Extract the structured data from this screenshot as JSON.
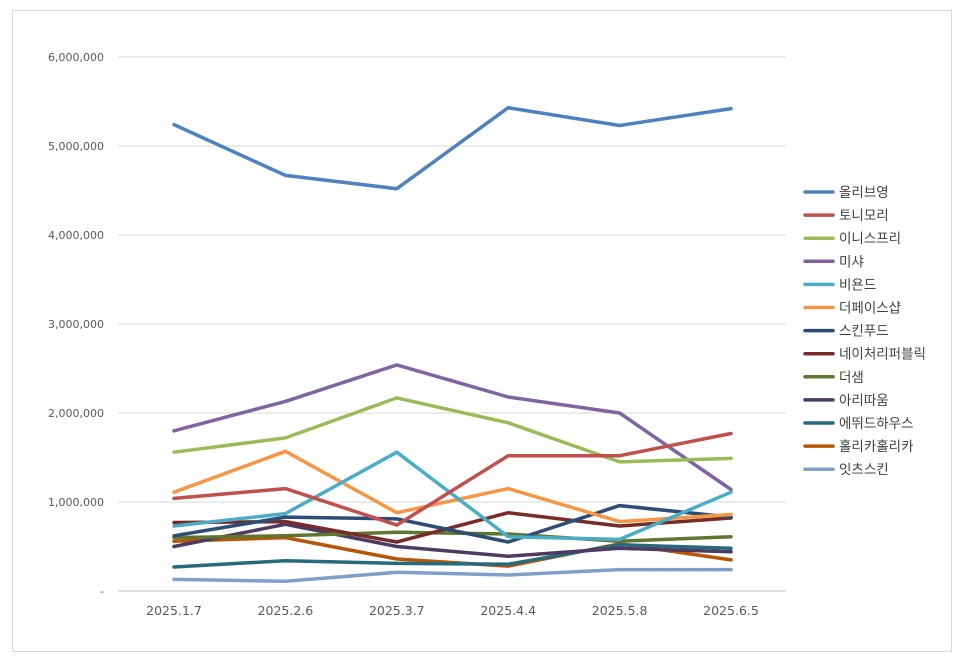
{
  "chart_data": {
    "type": "line",
    "title": "",
    "xlabel": "",
    "ylabel": "",
    "ylim": [
      0,
      6000000
    ],
    "y_ticks": [
      0,
      1000000,
      2000000,
      3000000,
      4000000,
      5000000,
      6000000
    ],
    "y_tick_labels": [
      "-",
      "1,000,000",
      "2,000,000",
      "3,000,000",
      "4,000,000",
      "5,000,000",
      "6,000,000"
    ],
    "categories": [
      "2025.1.7",
      "2025.2.6",
      "2025.3.7",
      "2025.4.4",
      "2025.5.8",
      "2025.6.5"
    ],
    "grid": true,
    "legend_position": "right",
    "series": [
      {
        "name": "올리브영",
        "color": "#4f81bd",
        "values": [
          5240000,
          4670000,
          4520000,
          5430000,
          5230000,
          5420000
        ]
      },
      {
        "name": "토니모리",
        "color": "#c0504d",
        "values": [
          1040000,
          1150000,
          740000,
          1520000,
          1520000,
          1770000
        ]
      },
      {
        "name": "이니스프리",
        "color": "#9bbb59",
        "values": [
          1560000,
          1720000,
          2170000,
          1890000,
          1450000,
          1490000
        ]
      },
      {
        "name": "미샤",
        "color": "#8064a2",
        "values": [
          1800000,
          2130000,
          2540000,
          2180000,
          2000000,
          1140000
        ]
      },
      {
        "name": "비욘드",
        "color": "#4bacc6",
        "values": [
          730000,
          870000,
          1560000,
          610000,
          580000,
          1110000
        ]
      },
      {
        "name": "더페이스샵",
        "color": "#f79646",
        "values": [
          1110000,
          1570000,
          880000,
          1150000,
          780000,
          860000
        ]
      },
      {
        "name": "스킨푸드",
        "color": "#2c4d75",
        "values": [
          620000,
          830000,
          810000,
          550000,
          960000,
          830000
        ]
      },
      {
        "name": "네이처리퍼블릭",
        "color": "#772c2a",
        "values": [
          770000,
          780000,
          550000,
          880000,
          730000,
          820000
        ]
      },
      {
        "name": "더샘",
        "color": "#5f7530",
        "values": [
          600000,
          620000,
          660000,
          640000,
          560000,
          610000
        ]
      },
      {
        "name": "아리따움",
        "color": "#4d3b62",
        "values": [
          500000,
          750000,
          500000,
          390000,
          480000,
          440000
        ]
      },
      {
        "name": "에뛰드하우스",
        "color": "#276a7c",
        "values": [
          270000,
          340000,
          310000,
          300000,
          520000,
          480000
        ]
      },
      {
        "name": "홀리카홀리카",
        "color": "#b65708",
        "values": [
          560000,
          600000,
          360000,
          280000,
          530000,
          350000
        ]
      },
      {
        "name": "잇츠스킨",
        "color": "#7f9fc9",
        "values": [
          130000,
          110000,
          210000,
          180000,
          240000,
          240000
        ]
      }
    ]
  }
}
